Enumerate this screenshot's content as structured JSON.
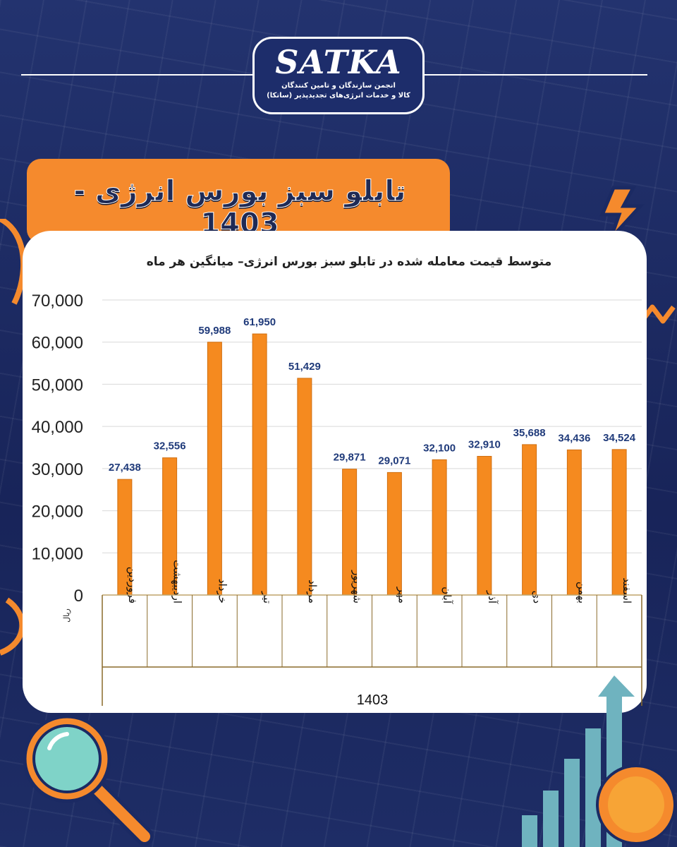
{
  "header": {
    "logo_text": "SATKA",
    "logo_subtitle_1": "انجمن سازندگان و تامین کنندگان",
    "logo_subtitle_2": "کالا و خدمات انرژی‌های تجدیدپذیر (ساتکا)",
    "title": "تابلو سبز بورس انرژی - 1403"
  },
  "colors": {
    "background": "#1b2a63",
    "accent": "#f58a2d",
    "bar": "#f58a1f",
    "label": "#1f3a7a"
  },
  "icons": [
    "lightning-icon",
    "magnifier-icon",
    "growth-chart-icon",
    "coin-icon"
  ],
  "chart_data": {
    "type": "bar",
    "title": "متوسط قیمت معامله شده در تابلو سبز بورس انرژی– میانگین هر ماه",
    "xlabel": "1403",
    "ylabel": "ریال",
    "categories": [
      "فروردین",
      "اردیبهشت",
      "خرداد",
      "تیر",
      "مرداد",
      "شهریور",
      "مهر",
      "آبان",
      "آذر",
      "دی",
      "بهمن",
      "اسفند"
    ],
    "values": [
      27438,
      32556,
      59988,
      61950,
      51429,
      29871,
      29071,
      32100,
      32910,
      35688,
      34436,
      34524
    ],
    "value_labels": [
      "27,438",
      "32,556",
      "59,988",
      "61,950",
      "51,429",
      "29,871",
      "29,071",
      "32,100",
      "32,910",
      "35,688",
      "34,436",
      "34,524"
    ],
    "ylim": [
      0,
      70000
    ],
    "yticks": [
      0,
      10000,
      20000,
      30000,
      40000,
      50000,
      60000,
      70000
    ],
    "ytick_labels": [
      "0",
      "10,000",
      "20,000",
      "30,000",
      "40,000",
      "50,000",
      "60,000",
      "70,000"
    ],
    "grid": true,
    "legend": "none"
  }
}
